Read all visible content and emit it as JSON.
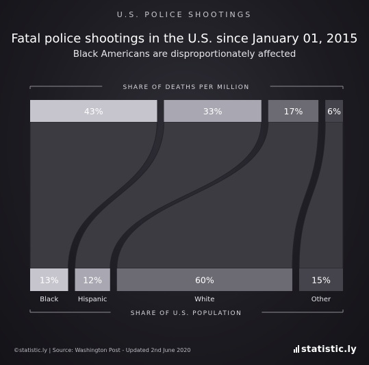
{
  "header": {
    "kicker": "U.S. POLICE SHOOTINGS",
    "title": "Fatal police shootings in the U.S. since January 01, 2015",
    "subtitle": "Black Americans are disproportionately affected"
  },
  "chart_data": {
    "type": "bar",
    "top_axis_label": "SHARE OF DEATHS PER MILLION",
    "bottom_axis_label": "SHARE OF U.S. POPULATION",
    "categories": [
      "Black",
      "Hispanic",
      "White",
      "Other"
    ],
    "series": [
      {
        "name": "SHARE OF DEATHS PER MILLION",
        "values": [
          43,
          33,
          17,
          6
        ],
        "labels": [
          "43%",
          "33%",
          "17%",
          "6%"
        ]
      },
      {
        "name": "SHARE OF U.S. POPULATION",
        "values": [
          13,
          12,
          60,
          15
        ],
        "labels": [
          "13%",
          "12%",
          "60%",
          "15%"
        ]
      }
    ],
    "colors": [
      "#c6c4cc",
      "#a9a7b1",
      "#6c6a73",
      "#45434b"
    ],
    "flow_color": "#3c3b42"
  },
  "footer": {
    "source": "©statistic.ly | Source: Washington Post - Updated 2nd June 2020",
    "brand": "statistic.ly"
  }
}
